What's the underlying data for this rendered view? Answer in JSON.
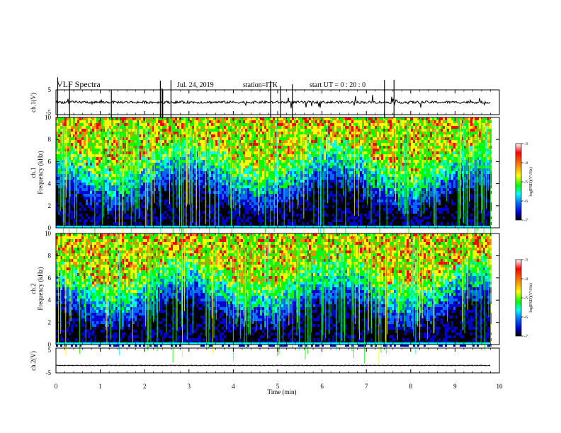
{
  "header": {
    "title": "VLF Spectra",
    "date": "Jul. 24, 2019",
    "station": "station=ITK",
    "start": "start UT =   0 : 20 : 0"
  },
  "panels": {
    "ch1_wave": {
      "ylabel": "ch.1(V)",
      "ytop": "5",
      "ybottom": "-5"
    },
    "ch1_spec": {
      "ylabel_line1": "ch.1",
      "ylabel_line2": "Frequency (kHz)"
    },
    "ch2_spec": {
      "ylabel_line1": "ch.2",
      "ylabel_line2": "Frequency (kHz)"
    },
    "ch2_wave": {
      "ylabel": "ch.2(V)",
      "ytop": "5",
      "ybottom": "-5"
    }
  },
  "colorbar": {
    "label": "log(PSD)(V²/Hz)",
    "ticks": [
      "-3",
      "-4",
      "-5",
      "-6",
      "-7"
    ],
    "colors": [
      "#ff0000",
      "#ff8800",
      "#ffff00",
      "#00ff00",
      "#00ffff",
      "#0066ff",
      "#0000cc",
      "#000000"
    ]
  },
  "xaxis": {
    "label": "Time (min)",
    "ticks": [
      "0",
      "1",
      "2",
      "3",
      "4",
      "5",
      "6",
      "7",
      "8",
      "9",
      "10"
    ]
  },
  "chart_data": [
    {
      "type": "line",
      "name": "ch1-waveform",
      "ylabel": "ch.1(V)",
      "ylim": [
        -5,
        5
      ],
      "xlim": [
        0,
        10
      ],
      "description_values": {
        "baseline": 0,
        "typical_noise": 0.5,
        "spike_max": 5
      }
    },
    {
      "type": "heatmap",
      "name": "ch1-spectrogram",
      "ylabel": "Frequency (kHz)",
      "ylim": [
        0,
        10
      ],
      "xlim": [
        0,
        10
      ],
      "yticks": [
        "0",
        "2",
        "4",
        "6",
        "8",
        "10"
      ],
      "zlim": [
        -7,
        -3
      ],
      "data_end_min": 9.8
    },
    {
      "type": "heatmap",
      "name": "ch2-spectrogram",
      "ylabel": "Frequency (kHz)",
      "ylim": [
        0,
        10
      ],
      "xlim": [
        0,
        10
      ],
      "yticks": [
        "0",
        "2",
        "4",
        "6",
        "8",
        "10"
      ],
      "zlim": [
        -7,
        -3
      ],
      "data_end_min": 9.8
    },
    {
      "type": "line",
      "name": "ch2-waveform",
      "ylabel": "ch.2(V)",
      "ylim": [
        -5,
        5
      ],
      "xlim": [
        0,
        10
      ],
      "description_values": {
        "baseline": -2
      }
    }
  ]
}
